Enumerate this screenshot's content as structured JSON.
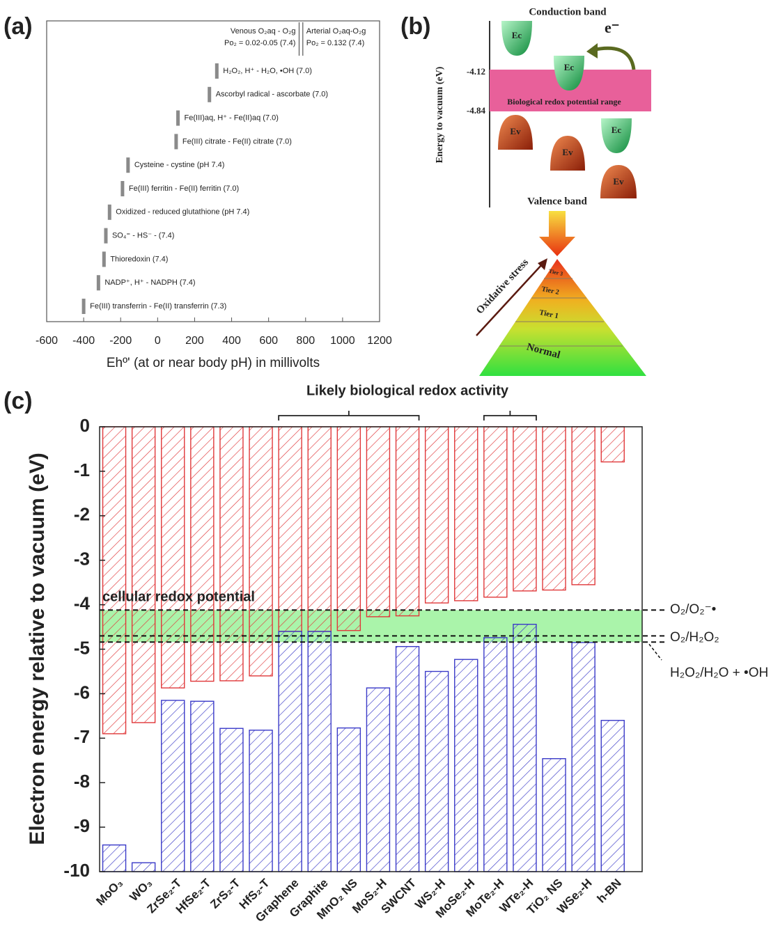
{
  "chart_data": [
    {
      "type": "marker",
      "panel_label": "(a)",
      "xlabel": "Ehº' (at or near body pH) in millivolts",
      "xlim": [
        -600,
        1200
      ],
      "xticks": [
        -600,
        -400,
        -200,
        0,
        200,
        400,
        600,
        800,
        1000,
        1200
      ],
      "color": "#8a8a8a",
      "categories": [
        "H₂O₂, H⁺ - H₂O, •OH (7.0)",
        "Ascorbyl radical - ascorbate (7.0)",
        "Fe(III)aq, H⁺ - Fe(II)aq (7.0)",
        "Fe(III) citrate - Fe(II) citrate (7.0)",
        "Cysteine - cystine (pH 7.4)",
        "Fe(III) ferritin - Fe(II) ferritin (7.0)",
        "Oxidized - reduced glutathione (pH 7.4)",
        "SO₄⁼ - HS⁻ - (7.4)",
        "Thioredoxin (7.4)",
        "NADP⁺, H⁺ - NADPH (7.4)",
        "Fe(III) transferrin - Fe(II) transferrin (7.3)"
      ],
      "values": [
        320,
        280,
        110,
        100,
        -160,
        -190,
        -260,
        -280,
        -290,
        -320,
        -400
      ],
      "reference_lines": [
        {
          "label": "Venous O₂aq - O₂g",
          "sublabel": "Po₂ = 0.02-0.05  (7.4)",
          "value": 765
        },
        {
          "label": "Arterial O₂aq-O₂g",
          "sublabel": "Po₂ = 0.132 (7.4)",
          "value": 785
        }
      ]
    },
    {
      "type": "bar",
      "panel_label": "(c)",
      "annotation": "Likely biological redox activity",
      "ylabel": "Electron energy relative to vacuum (eV)",
      "ylim": [
        -10,
        0
      ],
      "yticks": [
        0,
        -1,
        -2,
        -3,
        -4,
        -5,
        -6,
        -7,
        -8,
        -9,
        -10
      ],
      "categories": [
        "MoO₃",
        "WO₃",
        "ZrSe₂-T",
        "HfSe₂-T",
        "ZrS₂-T",
        "HfS₂-T",
        "Graphene",
        "Graphite",
        "MnO₂ NS",
        "MoS₂-H",
        "SWCNT",
        "WS₂-H",
        "MoSe₂-H",
        "MoTe₂-H",
        "WTe₂-H",
        "TiO₂ NS",
        "WSe₂-H",
        "h-BN"
      ],
      "series": [
        {
          "color": "#e0383a",
          "values": [
            -6.9,
            -6.65,
            -5.87,
            -5.72,
            -5.71,
            -5.6,
            -4.6,
            -4.6,
            -4.58,
            -4.27,
            -4.25,
            -3.96,
            -3.91,
            -3.83,
            -3.69,
            -3.67,
            -3.55,
            -0.79
          ]
        },
        {
          "color": "#3a3ac8",
          "values": [
            -9.4,
            -9.8,
            -6.15,
            -6.17,
            -6.78,
            -6.82,
            -4.6,
            -4.6,
            -6.77,
            -5.87,
            -4.94,
            -5.5,
            -5.23,
            -4.74,
            -4.44,
            -7.46,
            -4.85,
            -6.6
          ]
        }
      ],
      "band_label": "cellular redox potential",
      "band_color": "#8ef08e",
      "reference_lines": [
        {
          "label": "O₂/O₂⁻•",
          "value": -4.12
        },
        {
          "label": "O₂/H₂O₂",
          "value": -4.7
        },
        {
          "label": "H₂O₂/H₂O + •OH",
          "value": -4.84
        }
      ]
    }
  ],
  "diagram": {
    "panel_label": "(b)",
    "top_label": "Conduction band",
    "axis_label": "Energy to vacuum (eV)",
    "level_1": "-4.12",
    "level_2": "-4.84",
    "range_label": "Biological redox potential range",
    "ec_labels": [
      "Ec",
      "Ec",
      "Ec"
    ],
    "ev_labels": [
      "Ev",
      "Ev",
      "Ev"
    ],
    "electron": "e⁻",
    "bottom_label": "Valence band",
    "stress_label": "Oxidative stress",
    "tiers": [
      "Tier 3",
      "Tier 2",
      "Tier 1",
      "Normal"
    ]
  }
}
